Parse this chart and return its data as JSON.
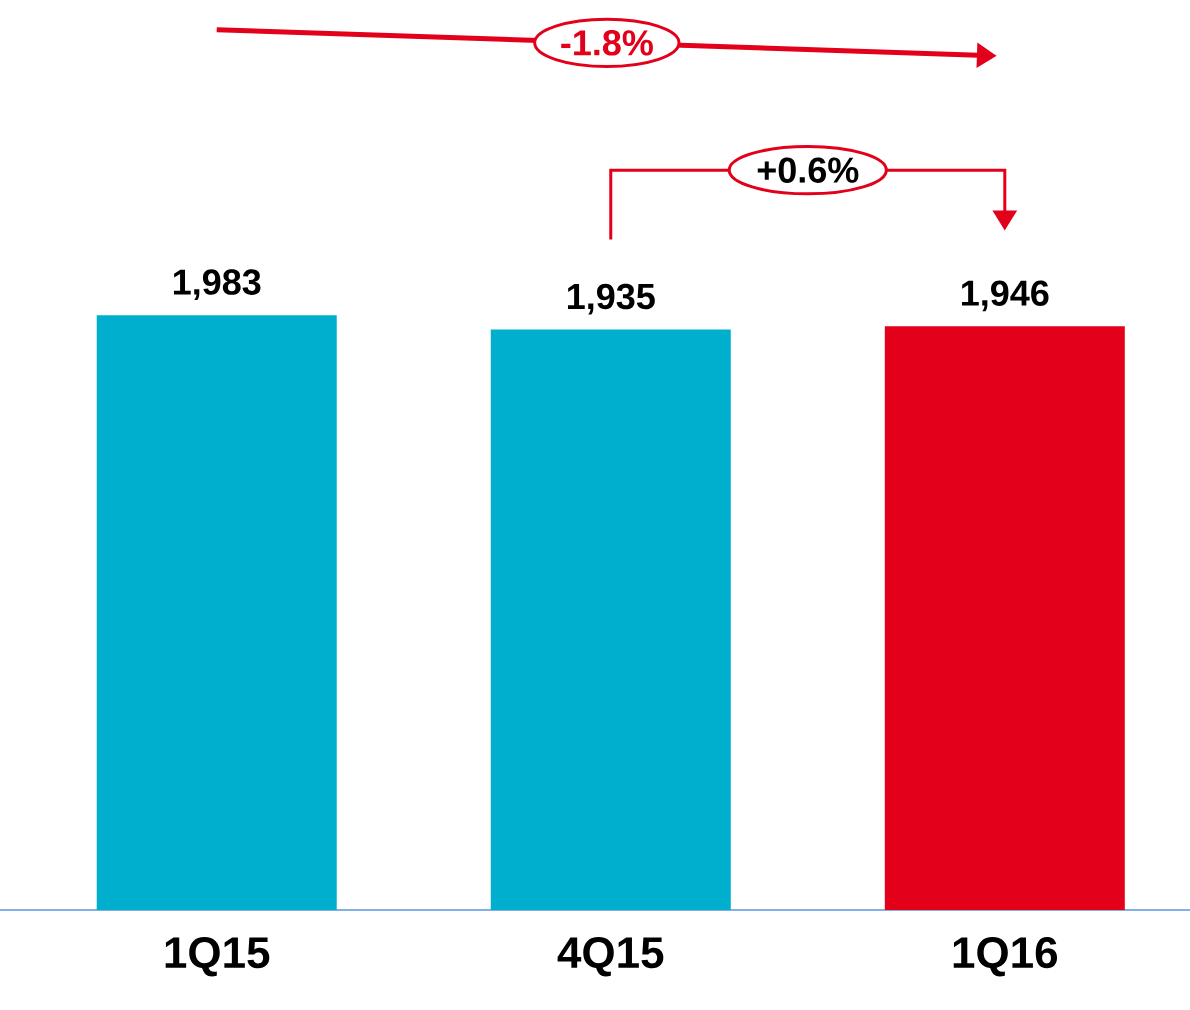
{
  "chart_data": {
    "type": "bar",
    "categories": [
      "1Q15",
      "4Q15",
      "1Q16"
    ],
    "values": [
      1983,
      1935,
      1946
    ],
    "value_labels": [
      "1,983",
      "1,935",
      "1,946"
    ],
    "colors": [
      "#00aecd",
      "#00aecd",
      "#e2001a"
    ],
    "tick_labels": "x",
    "annotations": [
      "-1.8%",
      "+0.6%"
    ]
  }
}
